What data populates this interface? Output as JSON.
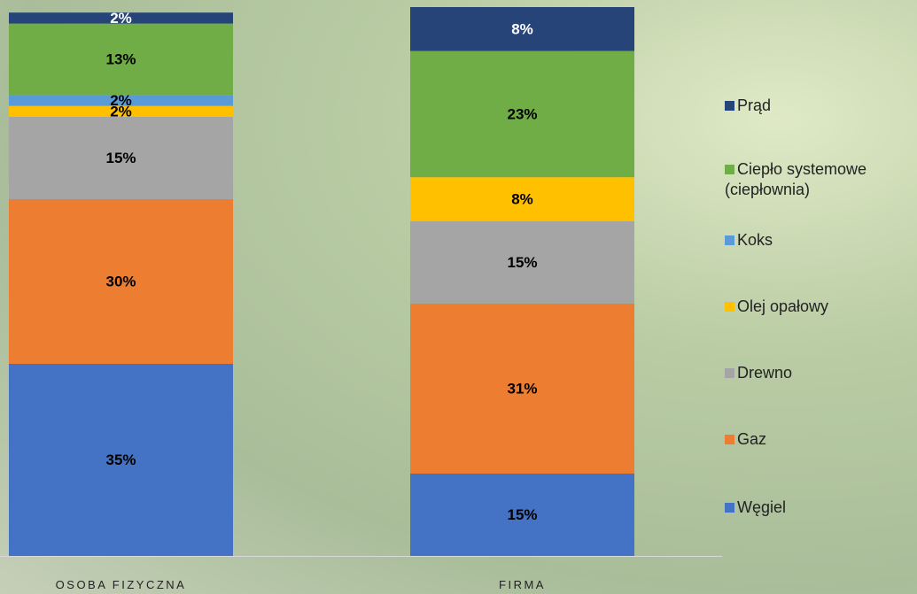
{
  "chart_data": {
    "type": "stacked_bar",
    "categories": [
      "OSOBA FIZYCZNA",
      "FIRMA"
    ],
    "ylim": [
      0,
      100
    ],
    "series": [
      {
        "name": "Węgiel",
        "color": "#4472c4",
        "label_color": "#000000",
        "values": [
          35,
          15
        ],
        "value_labels": [
          "35%",
          "15%"
        ]
      },
      {
        "name": "Gaz",
        "color": "#ed7d31",
        "label_color": "#000000",
        "values": [
          30,
          31
        ],
        "value_labels": [
          "30%",
          "31%"
        ]
      },
      {
        "name": "Drewno",
        "color": "#a5a5a5",
        "label_color": "#000000",
        "values": [
          15,
          15
        ],
        "value_labels": [
          "15%",
          "15%"
        ]
      },
      {
        "name": "Olej opałowy",
        "color": "#ffc000",
        "label_color": "#000000",
        "values": [
          2,
          8
        ],
        "value_labels": [
          "2%",
          "8%"
        ]
      },
      {
        "name": "Koks",
        "color": "#5b9bd5",
        "label_color": "#000000",
        "values": [
          2,
          0
        ],
        "value_labels": [
          "2%",
          null
        ]
      },
      {
        "name": "Ciepło systemowe (ciepłownia)",
        "color": "#70ad47",
        "label_color": "#000000",
        "values": [
          13,
          23
        ],
        "value_labels": [
          "13%",
          "23%"
        ]
      },
      {
        "name": "Prąd",
        "color": "#264478",
        "label_color": "#ffffff",
        "values": [
          2,
          8
        ],
        "value_labels": [
          "2%",
          "8%"
        ]
      }
    ]
  }
}
